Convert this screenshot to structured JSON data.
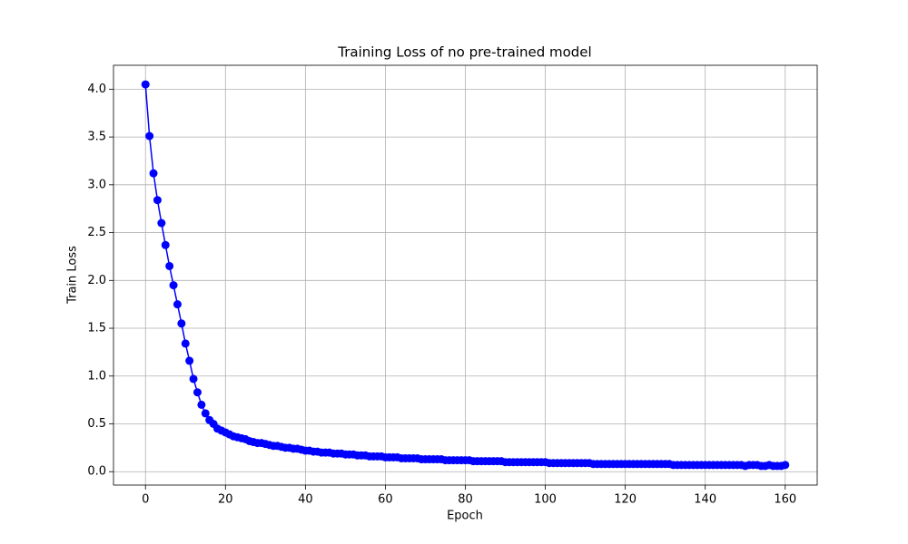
{
  "chart_data": {
    "type": "line",
    "title": "Training Loss of no pre-trained model",
    "x_label": "Epoch",
    "y_label": "Train Loss",
    "x": [
      0,
      1,
      2,
      3,
      4,
      5,
      6,
      7,
      8,
      9,
      10,
      11,
      12,
      13,
      14,
      15,
      16,
      17,
      18,
      19,
      20,
      21,
      22,
      23,
      24,
      25,
      26,
      27,
      28,
      29,
      30,
      31,
      32,
      33,
      34,
      35,
      36,
      37,
      38,
      39,
      40,
      41,
      42,
      43,
      44,
      45,
      46,
      47,
      48,
      49,
      50,
      51,
      52,
      53,
      54,
      55,
      56,
      57,
      58,
      59,
      60,
      61,
      62,
      63,
      64,
      65,
      66,
      67,
      68,
      69,
      70,
      71,
      72,
      73,
      74,
      75,
      76,
      77,
      78,
      79,
      80,
      81,
      82,
      83,
      84,
      85,
      86,
      87,
      88,
      89,
      90,
      91,
      92,
      93,
      94,
      95,
      96,
      97,
      98,
      99,
      100,
      101,
      102,
      103,
      104,
      105,
      106,
      107,
      108,
      109,
      110,
      111,
      112,
      113,
      114,
      115,
      116,
      117,
      118,
      119,
      120,
      121,
      122,
      123,
      124,
      125,
      126,
      127,
      128,
      129,
      130,
      131,
      132,
      133,
      134,
      135,
      136,
      137,
      138,
      139,
      140,
      141,
      142,
      143,
      144,
      145,
      146,
      147,
      148,
      149,
      150,
      151,
      152,
      153,
      154,
      155,
      156,
      157,
      158,
      159,
      160
    ],
    "series": [
      {
        "name": "Train Loss",
        "color": "#0000ff",
        "values": [
          4.05,
          3.51,
          3.12,
          2.84,
          2.6,
          2.37,
          2.15,
          1.95,
          1.75,
          1.55,
          1.34,
          1.16,
          0.97,
          0.83,
          0.7,
          0.61,
          0.54,
          0.5,
          0.45,
          0.43,
          0.41,
          0.39,
          0.37,
          0.36,
          0.35,
          0.34,
          0.32,
          0.31,
          0.3,
          0.3,
          0.29,
          0.28,
          0.27,
          0.27,
          0.26,
          0.25,
          0.25,
          0.24,
          0.24,
          0.23,
          0.22,
          0.22,
          0.21,
          0.21,
          0.2,
          0.2,
          0.2,
          0.19,
          0.19,
          0.19,
          0.18,
          0.18,
          0.18,
          0.17,
          0.17,
          0.17,
          0.16,
          0.16,
          0.16,
          0.16,
          0.15,
          0.15,
          0.15,
          0.15,
          0.14,
          0.14,
          0.14,
          0.14,
          0.14,
          0.13,
          0.13,
          0.13,
          0.13,
          0.13,
          0.13,
          0.12,
          0.12,
          0.12,
          0.12,
          0.12,
          0.12,
          0.12,
          0.11,
          0.11,
          0.11,
          0.11,
          0.11,
          0.11,
          0.11,
          0.11,
          0.1,
          0.1,
          0.1,
          0.1,
          0.1,
          0.1,
          0.1,
          0.1,
          0.1,
          0.1,
          0.1,
          0.09,
          0.09,
          0.09,
          0.09,
          0.09,
          0.09,
          0.09,
          0.09,
          0.09,
          0.09,
          0.09,
          0.08,
          0.08,
          0.08,
          0.08,
          0.08,
          0.08,
          0.08,
          0.08,
          0.08,
          0.08,
          0.08,
          0.08,
          0.08,
          0.08,
          0.08,
          0.08,
          0.08,
          0.08,
          0.08,
          0.08,
          0.07,
          0.07,
          0.07,
          0.07,
          0.07,
          0.07,
          0.07,
          0.07,
          0.07,
          0.07,
          0.07,
          0.07,
          0.07,
          0.07,
          0.07,
          0.07,
          0.07,
          0.07,
          0.06,
          0.07,
          0.07,
          0.07,
          0.06,
          0.06,
          0.07,
          0.06,
          0.06,
          0.06,
          0.07
        ]
      }
    ],
    "xlim": [
      -8,
      168
    ],
    "ylim": [
      -0.14,
      4.25
    ],
    "xticks": [
      0,
      20,
      40,
      60,
      80,
      100,
      120,
      140,
      160
    ],
    "yticks": [
      {
        "value": 0,
        "label": "0.0"
      },
      0.5,
      {
        "value": 1,
        "label": "1.0"
      },
      1.5,
      {
        "value": 2,
        "label": "2.0"
      },
      2.5,
      {
        "value": 3,
        "label": "3.0"
      },
      3.5,
      {
        "value": 4,
        "label": "4.0"
      }
    ],
    "grid": true,
    "markers": true
  }
}
